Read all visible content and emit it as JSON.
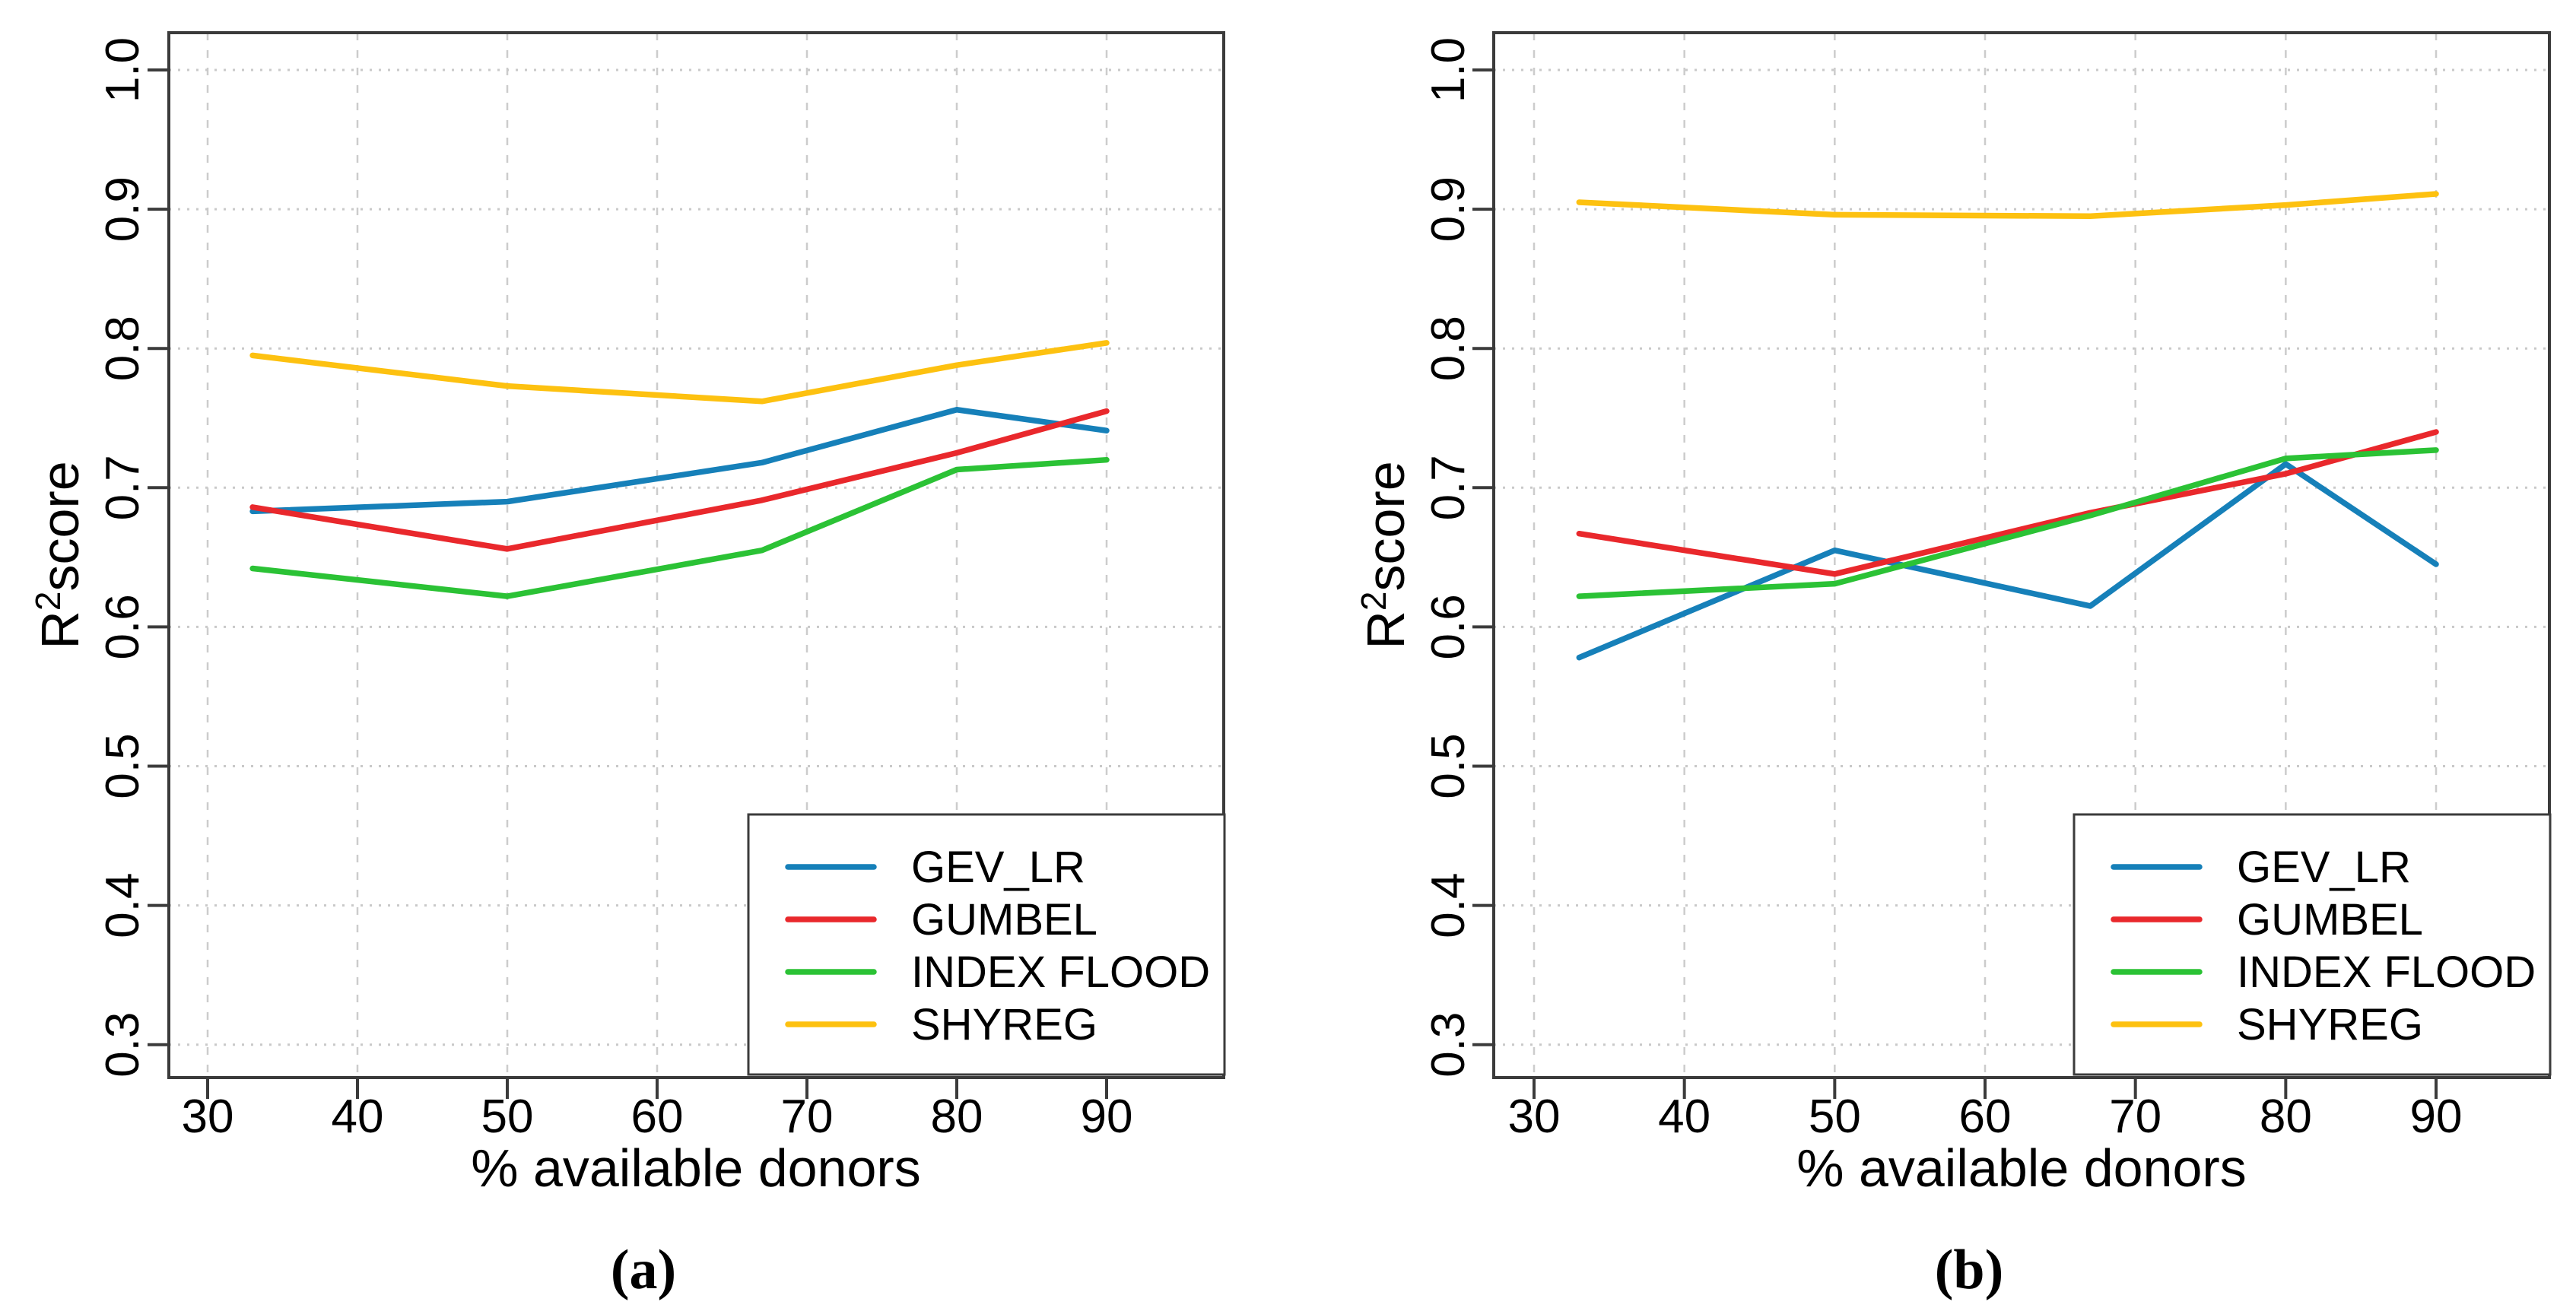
{
  "figure": {
    "background": "#ffffff"
  },
  "chart_data": [
    {
      "id": "a",
      "type": "line",
      "caption": "(a)",
      "title": "",
      "xlabel": "% available donors",
      "ylabel": {
        "base": "R",
        "sup": "2",
        "rest": "score"
      },
      "x": [
        33,
        50,
        67,
        80,
        90
      ],
      "x_ticks": [
        "30",
        "40",
        "50",
        "60",
        "70",
        "80",
        "90"
      ],
      "y_ticks": [
        "0.3",
        "0.4",
        "0.5",
        "0.6",
        "0.7",
        "0.8",
        "0.9",
        "1.0"
      ],
      "xlim": [
        27.4,
        97.6
      ],
      "ylim": [
        0.276,
        1.027
      ],
      "grid": true,
      "legend_position": "bottom-right",
      "series": [
        {
          "name": "GEV_LR",
          "color": "#1680B9",
          "values": [
            0.683,
            0.69,
            0.718,
            0.756,
            0.741
          ]
        },
        {
          "name": "GUMBEL",
          "color": "#E9282C",
          "values": [
            0.686,
            0.656,
            0.691,
            0.725,
            0.755
          ]
        },
        {
          "name": "INDEX FLOOD",
          "color": "#2BC235",
          "values": [
            0.642,
            0.622,
            0.655,
            0.713,
            0.72
          ]
        },
        {
          "name": "SHYREG",
          "color": "#FDC110",
          "values": [
            0.795,
            0.773,
            0.762,
            0.788,
            0.804
          ]
        }
      ]
    },
    {
      "id": "b",
      "type": "line",
      "caption": "(b)",
      "title": "",
      "xlabel": "% available donors",
      "ylabel": {
        "base": "R",
        "sup": "2",
        "rest": "score"
      },
      "x": [
        33,
        50,
        67,
        80,
        90
      ],
      "x_ticks": [
        "30",
        "40",
        "50",
        "60",
        "70",
        "80",
        "90"
      ],
      "y_ticks": [
        "0.3",
        "0.4",
        "0.5",
        "0.6",
        "0.7",
        "0.8",
        "0.9",
        "1.0"
      ],
      "xlim": [
        27.4,
        97.6
      ],
      "ylim": [
        0.276,
        1.027
      ],
      "grid": true,
      "legend_position": "bottom-right",
      "series": [
        {
          "name": "GEV_LR",
          "color": "#1680B9",
          "values": [
            0.578,
            0.655,
            0.615,
            0.717,
            0.645
          ]
        },
        {
          "name": "GUMBEL",
          "color": "#E9282C",
          "values": [
            0.667,
            0.638,
            0.682,
            0.71,
            0.74
          ]
        },
        {
          "name": "INDEX FLOOD",
          "color": "#2BC235",
          "values": [
            0.622,
            0.631,
            0.68,
            0.721,
            0.727
          ]
        },
        {
          "name": "SHYREG",
          "color": "#FDC110",
          "values": [
            0.905,
            0.896,
            0.895,
            0.903,
            0.911
          ]
        }
      ]
    }
  ]
}
